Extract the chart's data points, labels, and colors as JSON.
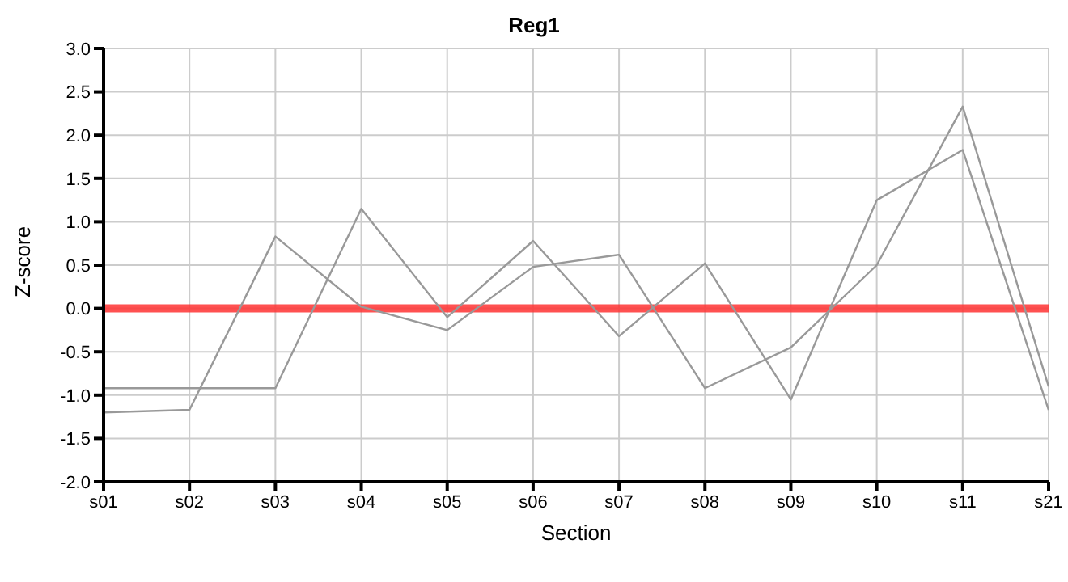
{
  "chart_data": {
    "type": "line",
    "title": "Reg1",
    "xlabel": "Section",
    "ylabel": "Z-score",
    "categories": [
      "s01",
      "s02",
      "s03",
      "s04",
      "s05",
      "s06",
      "s07",
      "s08",
      "s09",
      "s10",
      "s11",
      "s21"
    ],
    "series": [
      {
        "color": "#999999",
        "values": [
          -0.92,
          -0.92,
          -0.92,
          1.15,
          -0.1,
          0.78,
          -0.32,
          0.52,
          -1.05,
          1.25,
          1.83,
          -1.17
        ]
      },
      {
        "color": "#999999",
        "values": [
          -1.2,
          -1.17,
          0.83,
          0.02,
          -0.25,
          0.48,
          0.62,
          -0.92,
          -0.45,
          0.5,
          2.33,
          -0.9
        ]
      }
    ],
    "ylim": [
      -2,
      3
    ],
    "yticks": [
      {
        "value": -2,
        "label": "-2.0"
      },
      {
        "value": -1.5,
        "label": "-1.5"
      },
      {
        "value": -1,
        "label": "-1.0"
      },
      {
        "value": -0.5,
        "label": "-0.5"
      },
      {
        "value": 0,
        "label": "0.0"
      },
      {
        "value": 0.5,
        "label": "0.5"
      },
      {
        "value": 1,
        "label": "1.0"
      },
      {
        "value": 1.5,
        "label": "1.5"
      },
      {
        "value": 2,
        "label": "2.0"
      },
      {
        "value": 2.5,
        "label": "2.5"
      },
      {
        "value": 3,
        "label": "3.0"
      }
    ],
    "ref_lines": [
      {
        "axis": "y",
        "value": 0,
        "color": "#ff3333"
      }
    ],
    "grid": true,
    "legend": false,
    "marker": "none",
    "line_style": "solid"
  }
}
